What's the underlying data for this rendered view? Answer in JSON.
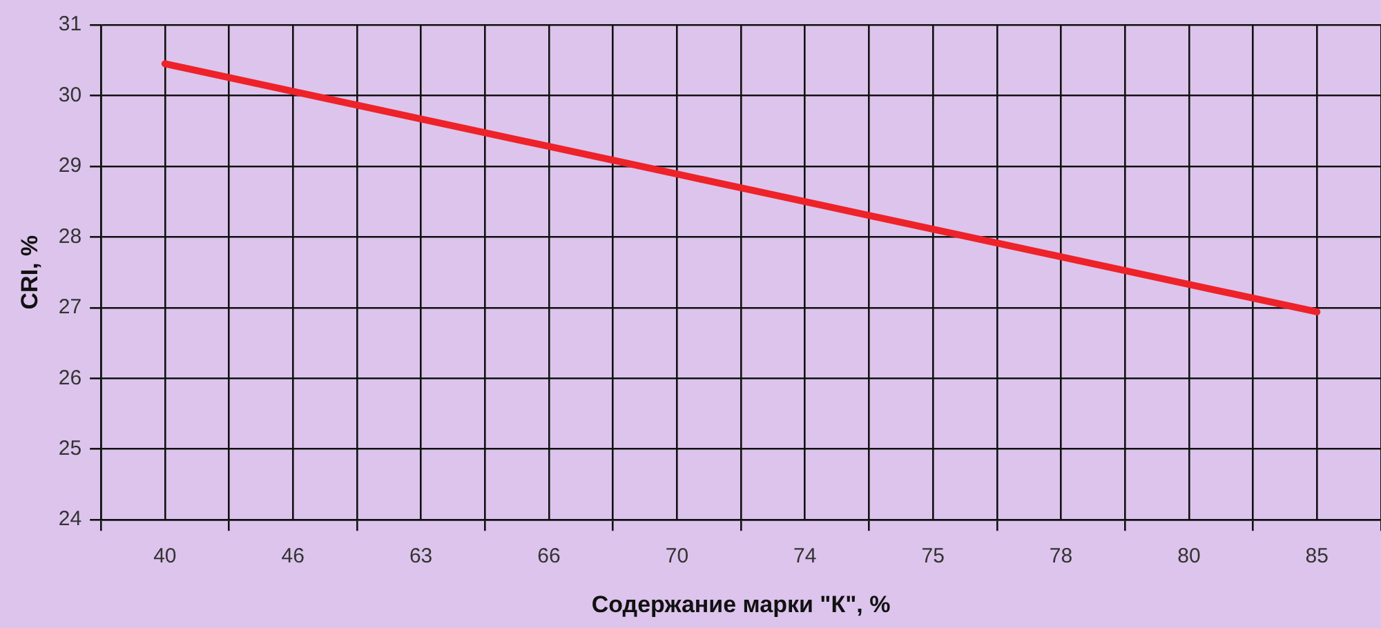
{
  "chart_data": {
    "type": "line",
    "xlabel": "Содержание марки \"К\", %",
    "ylabel": "CRI, %",
    "categories": [
      "40",
      "46",
      "63",
      "66",
      "70",
      "74",
      "75",
      "78",
      "80",
      "85"
    ],
    "series": [
      {
        "color": "#ee2229",
        "values": [
          30.45,
          30.06,
          29.67,
          29.28,
          28.89,
          28.5,
          28.11,
          27.72,
          27.33,
          26.94
        ]
      }
    ],
    "ylim": [
      24,
      31
    ],
    "yticks": [
      24,
      25,
      26,
      27,
      28,
      29,
      30,
      31
    ],
    "grid": true,
    "legend": false,
    "marker": "none",
    "line_style": "solid"
  }
}
